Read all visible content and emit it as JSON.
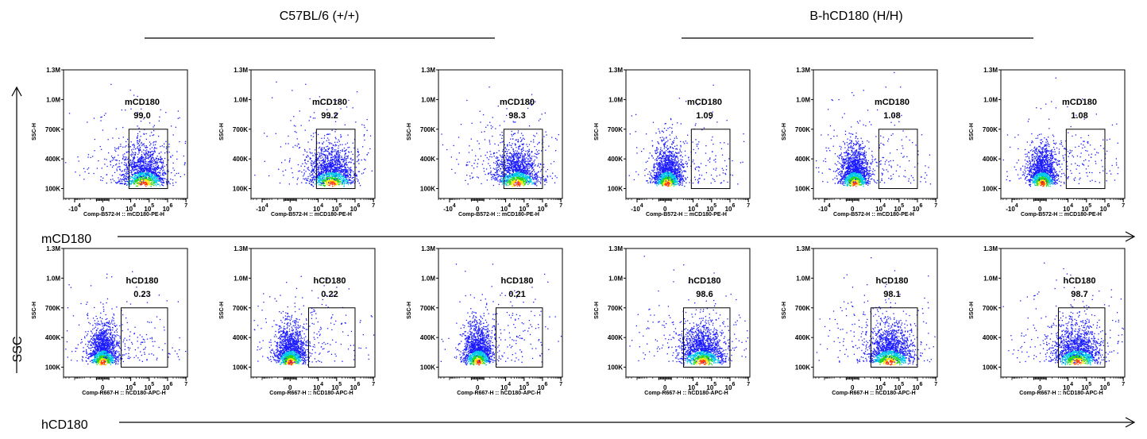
{
  "group_titles": [
    "C57BL/6 (+/+)",
    "B-hCD180 (H/H)"
  ],
  "marker_labels": [
    "mCD180",
    "hCD180"
  ],
  "ssc_label": "SSC",
  "colors": {
    "low": "#1a1aff",
    "mid": "#00c8e6",
    "high": "#22d622",
    "peak": "#ffe600",
    "top": "#ff3300"
  },
  "chart_data": [
    {
      "type": "scatter",
      "row": 0,
      "xlabel": "Comp-B572-H :: mCD180-PE-H",
      "ylabel": "SSC-H",
      "gate_label": "mCD180",
      "ylim": [
        0,
        1300000
      ],
      "x_scale": "biexponential",
      "y_ticks": [
        "100K",
        "400K",
        "700K",
        "1.0M",
        "1.3M"
      ],
      "y_tick_values": [
        100000,
        400000,
        700000,
        1000000,
        1300000
      ],
      "x_ticks": [
        {
          "base": "-10",
          "exp": "4",
          "value": -10000
        },
        {
          "base": "0",
          "exp": "",
          "value": 0
        },
        {
          "base": "10",
          "exp": "4",
          "value": 10000
        },
        {
          "base": "10",
          "exp": "5",
          "value": 100000
        },
        {
          "base": "10",
          "exp": "6",
          "value": 1000000
        },
        {
          "base": "",
          "exp": "7",
          "value": 10000000
        }
      ],
      "panels": [
        {
          "group": "C57BL/6 (+/+)",
          "gate_percent": "99.0",
          "population_center": [
            50000,
            150000
          ],
          "gate_x_range": [
            8000,
            1000000
          ],
          "gate_y_range": [
            100000,
            700000
          ]
        },
        {
          "group": "C57BL/6 (+/+)",
          "gate_percent": "99.2",
          "population_center": [
            50000,
            150000
          ],
          "gate_x_range": [
            8000,
            1000000
          ],
          "gate_y_range": [
            100000,
            700000
          ]
        },
        {
          "group": "C57BL/6 (+/+)",
          "gate_percent": "98.3",
          "population_center": [
            40000,
            150000
          ],
          "gate_x_range": [
            8000,
            1000000
          ],
          "gate_y_range": [
            100000,
            700000
          ]
        },
        {
          "group": "B-hCD180 (H/H)",
          "gate_percent": "1.09",
          "population_center": [
            300,
            150000
          ],
          "gate_x_range": [
            8000,
            1000000
          ],
          "gate_y_range": [
            100000,
            700000
          ]
        },
        {
          "group": "B-hCD180 (H/H)",
          "gate_percent": "1.08",
          "population_center": [
            300,
            150000
          ],
          "gate_x_range": [
            8000,
            1000000
          ],
          "gate_y_range": [
            100000,
            700000
          ]
        },
        {
          "group": "B-hCD180 (H/H)",
          "gate_percent": "1.08",
          "population_center": [
            300,
            150000
          ],
          "gate_x_range": [
            8000,
            1000000
          ],
          "gate_y_range": [
            100000,
            700000
          ]
        }
      ]
    },
    {
      "type": "scatter",
      "row": 1,
      "xlabel": "Comp-R667-H :: hCD180-APC-H",
      "ylabel": "SSC-H",
      "gate_label": "hCD180",
      "ylim": [
        0,
        1300000
      ],
      "x_scale": "biexponential",
      "y_ticks": [
        "100K",
        "400K",
        "700K",
        "1.0M",
        "1.3M"
      ],
      "y_tick_values": [
        100000,
        400000,
        700000,
        1000000,
        1300000
      ],
      "x_ticks": [
        {
          "base": "0",
          "exp": "",
          "value": 0
        },
        {
          "base": "10",
          "exp": "4",
          "value": 10000
        },
        {
          "base": "10",
          "exp": "5",
          "value": 100000
        },
        {
          "base": "10",
          "exp": "6",
          "value": 1000000
        },
        {
          "base": "",
          "exp": "7",
          "value": 10000000
        }
      ],
      "panels": [
        {
          "group": "C57BL/6 (+/+)",
          "gate_percent": "0.23",
          "population_center": [
            0,
            150000
          ],
          "gate_x_range": [
            3000,
            1000000
          ],
          "gate_y_range": [
            100000,
            700000
          ]
        },
        {
          "group": "C57BL/6 (+/+)",
          "gate_percent": "0.22",
          "population_center": [
            0,
            150000
          ],
          "gate_x_range": [
            3000,
            1000000
          ],
          "gate_y_range": [
            100000,
            700000
          ]
        },
        {
          "group": "C57BL/6 (+/+)",
          "gate_percent": "0.21",
          "population_center": [
            0,
            150000
          ],
          "gate_x_range": [
            3000,
            1000000
          ],
          "gate_y_range": [
            100000,
            700000
          ]
        },
        {
          "group": "B-hCD180 (H/H)",
          "gate_percent": "98.6",
          "population_center": [
            30000,
            150000
          ],
          "gate_x_range": [
            3000,
            1000000
          ],
          "gate_y_range": [
            100000,
            700000
          ]
        },
        {
          "group": "B-hCD180 (H/H)",
          "gate_percent": "98.1",
          "population_center": [
            30000,
            150000
          ],
          "gate_x_range": [
            3000,
            1000000
          ],
          "gate_y_range": [
            100000,
            700000
          ]
        },
        {
          "group": "B-hCD180 (H/H)",
          "gate_percent": "98.7",
          "population_center": [
            30000,
            150000
          ],
          "gate_x_range": [
            3000,
            1000000
          ],
          "gate_y_range": [
            100000,
            700000
          ]
        }
      ]
    }
  ]
}
